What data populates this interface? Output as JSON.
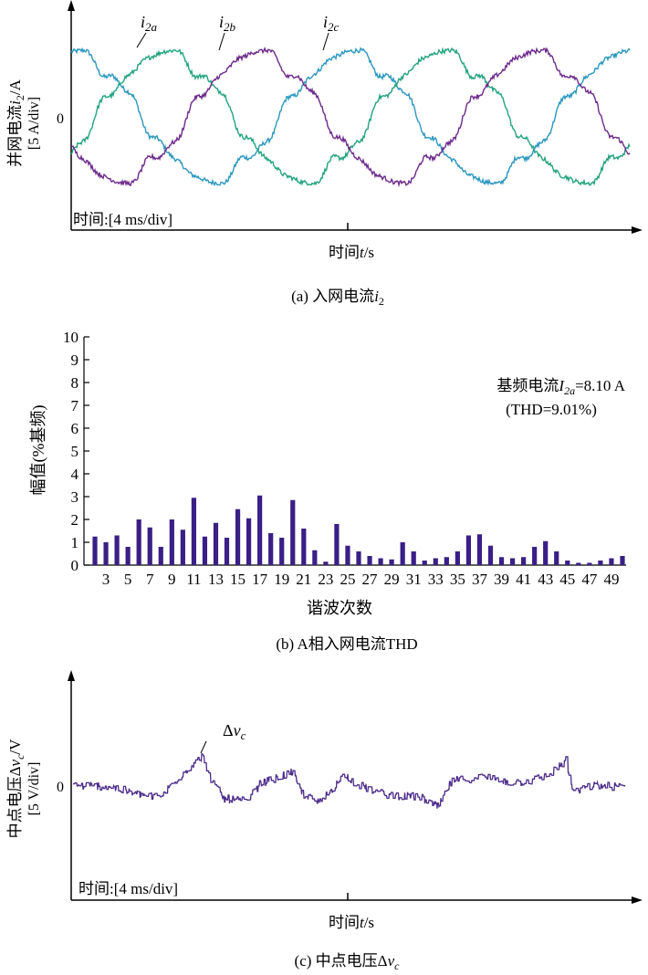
{
  "colors": {
    "i2a": "#2a97bf",
    "i2b": "#21a37f",
    "i2c": "#6d2a8c",
    "bar": "#3a1f86",
    "dvc": "#4a2a8a",
    "axis": "#000000"
  },
  "panel_a": {
    "ylabel_main": "并网电流",
    "ylabel_sym": "i",
    "ylabel_sub": "2",
    "ylabel_unit": "/A",
    "ydiv": "[5 A/div]",
    "zero": "0",
    "time_div": "时间:[4 ms/div]",
    "xlabel_main": "时间",
    "xlabel_sym": "t",
    "xlabel_unit": "/s",
    "caption_prefix": "(a) 入网电流",
    "caption_sym": "i",
    "caption_sub": "2",
    "labels": [
      {
        "sym": "i",
        "sub": "2a"
      },
      {
        "sym": "i",
        "sub": "2b"
      },
      {
        "sym": "i",
        "sub": "2c"
      }
    ]
  },
  "panel_b": {
    "ylabel": "幅值(%基频)",
    "xlabel": "谐波次数",
    "fund_prefix": "基频电流",
    "fund_sym": "I",
    "fund_sub": "2a",
    "fund_value": "=8.10 A",
    "thd": "(THD=9.01%)",
    "caption": "(b) A相入网电流THD",
    "yticks": [
      "0",
      "1",
      "2",
      "3",
      "4",
      "5",
      "6",
      "7",
      "8",
      "9",
      "10"
    ],
    "xticks": [
      "3",
      "5",
      "7",
      "9",
      "11",
      "13",
      "15",
      "17",
      "19",
      "21",
      "23",
      "25",
      "27",
      "29",
      "31",
      "33",
      "35",
      "37",
      "39",
      "41",
      "43",
      "45",
      "47",
      "49"
    ]
  },
  "panel_c": {
    "ylabel_main": "中点电压Δ",
    "ylabel_sym": "v",
    "ylabel_sub": "c",
    "ylabel_unit": "/V",
    "ydiv": "[5 V/div]",
    "zero": "0",
    "time_div": "时间:[4 ms/div]",
    "xlabel_main": "时间",
    "xlabel_sym": "t",
    "xlabel_unit": "/s",
    "caption_prefix": "(c) 中点电压Δ",
    "caption_sym": "v",
    "caption_sub": "c",
    "label_prefix": "Δ",
    "label_sym": "v",
    "label_sub": "c"
  },
  "chart_data": [
    {
      "type": "line",
      "title": "(a) 入网电流i2",
      "xlabel": "时间t/s",
      "ylabel": "并网电流i2/A",
      "x_div": "4 ms/div",
      "y_div": "5 A/div",
      "series": [
        {
          "name": "i2a",
          "amplitude_div": 1.6,
          "period_ms": 20
        },
        {
          "name": "i2b",
          "amplitude_div": 1.6,
          "period_ms": 20
        },
        {
          "name": "i2c",
          "amplitude_div": 1.6,
          "period_ms": 20
        }
      ]
    },
    {
      "type": "bar",
      "title": "(b) A相入网电流THD",
      "xlabel": "谐波次数",
      "ylabel": "幅值(%基频)",
      "ylim": [
        0,
        10
      ],
      "fundamental": "I2a=8.10 A",
      "thd": "9.01%",
      "categories": [
        2,
        3,
        4,
        5,
        6,
        7,
        8,
        9,
        10,
        11,
        12,
        13,
        14,
        15,
        16,
        17,
        18,
        19,
        20,
        21,
        22,
        23,
        24,
        25,
        26,
        27,
        28,
        29,
        30,
        31,
        32,
        33,
        34,
        35,
        36,
        37,
        38,
        39,
        40,
        41,
        42,
        43,
        44,
        45,
        46,
        47,
        48,
        49,
        50
      ],
      "values": [
        1.25,
        1.0,
        1.3,
        0.8,
        2.0,
        1.65,
        0.8,
        2.0,
        1.55,
        2.95,
        1.25,
        1.85,
        1.2,
        2.45,
        2.05,
        3.05,
        1.4,
        1.2,
        2.85,
        1.6,
        0.65,
        0.15,
        1.8,
        0.85,
        0.6,
        0.4,
        0.3,
        0.25,
        1.0,
        0.6,
        0.2,
        0.3,
        0.35,
        0.6,
        1.3,
        1.35,
        0.85,
        0.35,
        0.3,
        0.35,
        0.8,
        1.05,
        0.6,
        0.2,
        0.1,
        0.1,
        0.2,
        0.3,
        0.4
      ]
    },
    {
      "type": "line",
      "title": "(c) 中点电压Δvc",
      "xlabel": "时间t/s",
      "ylabel": "中点电压Δvc/V",
      "x_div": "4 ms/div",
      "y_div": "5 V/div",
      "series": [
        {
          "name": "Δvc"
        }
      ]
    }
  ]
}
